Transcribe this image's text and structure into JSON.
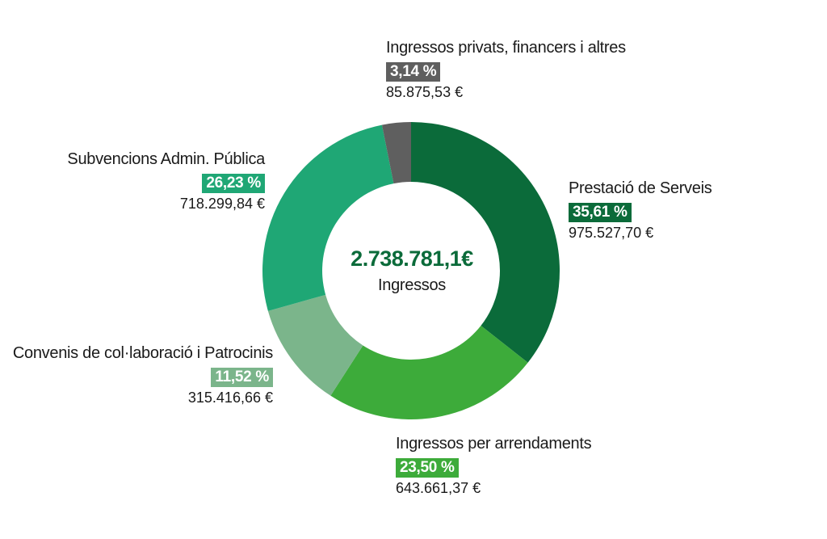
{
  "chart_data": {
    "type": "pie",
    "center_total": "2.738.781,1€",
    "center_caption": "Ingressos",
    "slices": [
      {
        "label": "Prestació de Serveis",
        "percent_text": "35,61 %",
        "value": 35.61,
        "amount": "975.527,70 €",
        "color": "#0b6b3a"
      },
      {
        "label": "Ingressos per arrendaments",
        "percent_text": "23,50 %",
        "value": 23.5,
        "amount": "643.661,37 €",
        "color": "#3dab3a"
      },
      {
        "label": "Convenis de col·laboració i Patrocinis",
        "percent_text": "11,52 %",
        "value": 11.52,
        "amount": "315.416,66 €",
        "color": "#7bb58b"
      },
      {
        "label": "Subvencions Admin. Pública",
        "percent_text": "26,23 %",
        "value": 26.23,
        "amount": "718.299,84 €",
        "color": "#1fa775"
      },
      {
        "label": "Ingressos privats, financers i altres",
        "percent_text": "3,14 %",
        "value": 3.14,
        "amount": "85.875,53 €",
        "color": "#5f5f5f"
      }
    ]
  }
}
